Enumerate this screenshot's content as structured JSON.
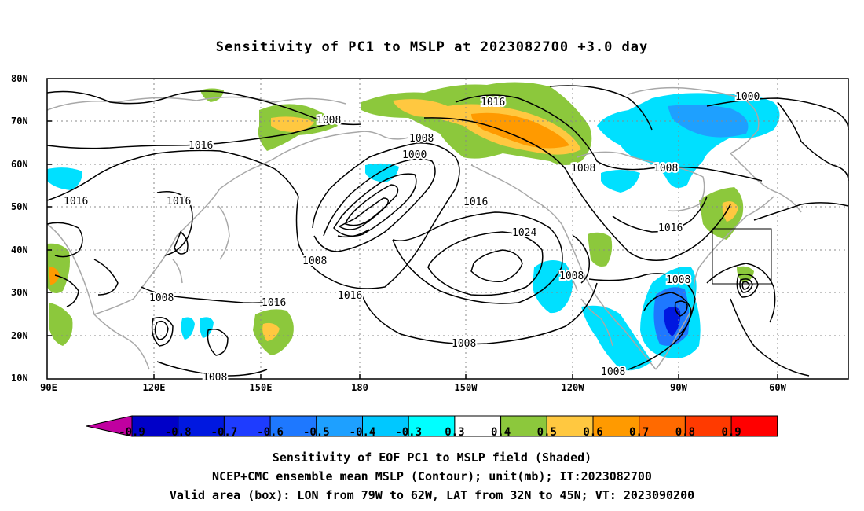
{
  "title": "Sensitivity of PC1 to MSLP at 2023082700 +3.0 day",
  "lat_labels": [
    "80N",
    "70N",
    "60N",
    "50N",
    "40N",
    "30N",
    "20N",
    "10N"
  ],
  "lon_labels": [
    "90E",
    "120E",
    "150E",
    "180",
    "150W",
    "120W",
    "90W",
    "60W"
  ],
  "contour_labels": [
    "1008",
    "1016",
    "1000",
    "1008",
    "1016",
    "1000",
    "1008",
    "1008",
    "1016",
    "1016",
    "1016",
    "1008",
    "1008",
    "1016",
    "1024",
    "1008",
    "1008",
    "1008",
    "1016",
    "1008",
    "1016",
    "1008"
  ],
  "colorbar": {
    "labels": [
      "-0.9",
      "-0.8",
      "-0.7",
      "-0.6",
      "-0.5",
      "-0.4",
      "-0.3",
      "0.3",
      "0.4",
      "0.5",
      "0.6",
      "0.7",
      "0.8",
      "0.9"
    ],
    "colors": [
      "#c000a0",
      "#0000c8",
      "#0018e0",
      "#1e3cff",
      "#1e78ff",
      "#1ea0ff",
      "#00c8ff",
      "#00ffff",
      "#ffffff",
      "#8cc83c",
      "#ffc840",
      "#ff9a00",
      "#ff6a00",
      "#ff3a00",
      "#ff0000",
      "#ff9ccc"
    ]
  },
  "captions": [
    "Sensitivity of EOF PC1 to MSLP field (Shaded)",
    "NCEP+CMC ensemble mean MSLP (Contour); unit(mb); IT:2023082700",
    "Valid area (box): LON from 79W to 62W, LAT from 32N to 45N; VT: 2023090200"
  ]
}
